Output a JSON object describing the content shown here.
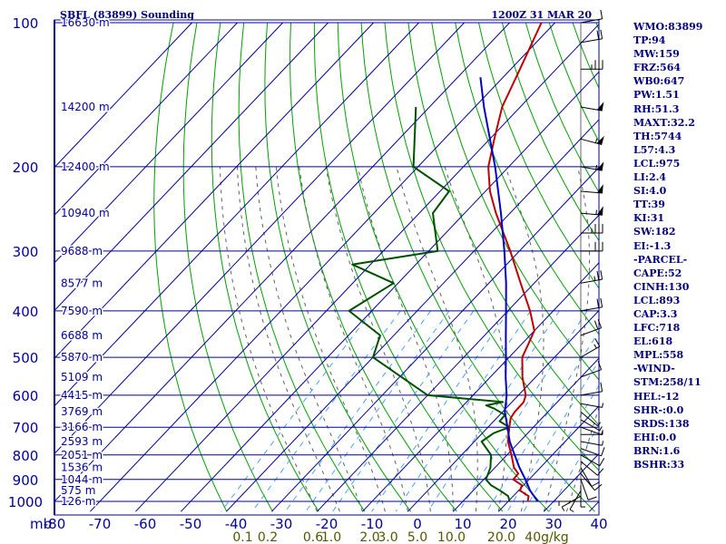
{
  "header": {
    "station": "SBFL (83899) Sounding",
    "time": "1200Z 31 MAR 20"
  },
  "colors": {
    "frame": "#00009c",
    "isobar": "#00009c",
    "isotherm": "#00009c",
    "dry_adiabat": "#00a000",
    "moist_adiabat": "#606060",
    "mixing_ratio": "#4aa3ff",
    "temperature": "#c00000",
    "dewpoint": "#005000",
    "parcel": "#0000c8",
    "text": "#00007f",
    "mixing_label": "#555500"
  },
  "sidebar": {
    "items": [
      "WMO:83899",
      "TP:94",
      "MW:159",
      "FRZ:564",
      "WB0:647",
      "PW:1.51",
      "RH:51.3",
      "MAXT:32.2",
      "TH:5744",
      "L57:4.3",
      "LCL:975",
      "LI:2.4",
      "SI:4.0",
      "TT:39",
      "KI:31",
      "SW:182",
      "EI:-1.3",
      "-PARCEL-",
      "CAPE:52",
      "CINH:130",
      "LCL:893",
      "CAP:3.3",
      "LFC:718",
      "EL:618",
      "MPL:558",
      "-WIND-",
      "STM:258/11",
      "HEL:-12",
      "SHR-:0.0",
      "SRDS:138",
      "EHI:0.0",
      "BRN:1.6",
      "BSHR:33"
    ]
  },
  "chart_data": {
    "type": "line",
    "title": "SBFL (83899) Sounding",
    "subtitle": "1200Z 31 MAR 20",
    "xlabel": "",
    "ylabel": "mb",
    "xlim": [
      -80,
      40
    ],
    "ylim": [
      1000,
      100
    ],
    "y_scale": "log",
    "grid": true,
    "x_ticks": [
      "-80",
      "-70",
      "-60",
      "-50",
      "-40",
      "-30",
      "-20",
      "-10",
      "0",
      "10",
      "20",
      "30",
      "40"
    ],
    "x_tick_values": [
      -80,
      -70,
      -60,
      -50,
      -40,
      -30,
      -20,
      -10,
      0,
      10,
      20,
      30,
      40
    ],
    "p_ticks": [
      "100",
      "200",
      "300",
      "400",
      "500",
      "600",
      "700",
      "800",
      "900",
      "1000"
    ],
    "p_tick_values": [
      100,
      200,
      300,
      400,
      500,
      600,
      700,
      800,
      900,
      1000
    ],
    "y_axis_unit": "mb",
    "heights": [
      {
        "label": "16630 m",
        "p": 100
      },
      {
        "label": "14200 m",
        "p": 150
      },
      {
        "label": "12400 m",
        "p": 200
      },
      {
        "label": "10940 m",
        "p": 250
      },
      {
        "label": "9688 m",
        "p": 300
      },
      {
        "label": "8577 m",
        "p": 350
      },
      {
        "label": "7590 m",
        "p": 400
      },
      {
        "label": "6688 m",
        "p": 450
      },
      {
        "label": "5870 m",
        "p": 500
      },
      {
        "label": "5109 m",
        "p": 550
      },
      {
        "label": "4415 m",
        "p": 600
      },
      {
        "label": "3769 m",
        "p": 650
      },
      {
        "label": "3166 m",
        "p": 700
      },
      {
        "label": "2593 m",
        "p": 750
      },
      {
        "label": "2051 m",
        "p": 800
      },
      {
        "label": "1536 m",
        "p": 850
      },
      {
        "label": "1044 m",
        "p": 900
      },
      {
        "label": "575 m",
        "p": 950
      },
      {
        "label": "126 m",
        "p": 1000
      }
    ],
    "mixing_ratio_ticks": [
      {
        "label": "0.1",
        "t": -38.5
      },
      {
        "label": "0.2",
        "t": -33.0
      },
      {
        "label": "0.6",
        "t": -23.0
      },
      {
        "label": "1.0",
        "t": -19.0
      },
      {
        "label": "2.0",
        "t": -10.5
      },
      {
        "label": "3.0",
        "t": -6.5
      },
      {
        "label": "5.0",
        "t": 0.0
      },
      {
        "label": "10.0",
        "t": 7.5
      },
      {
        "label": "20.0",
        "t": 18.5
      },
      {
        "label": "40g/kg",
        "t": 28.5
      }
    ],
    "series": [
      {
        "points": [
          {
            "p": 1000,
            "t": 24.3
          },
          {
            "p": 975,
            "t": 23.4
          },
          {
            "p": 950,
            "t": 20.4
          },
          {
            "p": 925,
            "t": 19.6
          },
          {
            "p": 900,
            "t": 16.5
          },
          {
            "p": 875,
            "t": 16.4
          },
          {
            "p": 850,
            "t": 14.2
          },
          {
            "p": 800,
            "t": 11.0
          },
          {
            "p": 750,
            "t": 7.4
          },
          {
            "p": 700,
            "t": 4.7
          },
          {
            "p": 670,
            "t": 3.1
          },
          {
            "p": 650,
            "t": 2.7
          },
          {
            "p": 620,
            "t": 2.6
          },
          {
            "p": 600,
            "t": 1.6
          },
          {
            "p": 550,
            "t": -2.9
          },
          {
            "p": 500,
            "t": -7.1
          },
          {
            "p": 470,
            "t": -8.5
          },
          {
            "p": 440,
            "t": -10.0
          },
          {
            "p": 400,
            "t": -15.1
          },
          {
            "p": 350,
            "t": -23.0
          },
          {
            "p": 300,
            "t": -32.0
          },
          {
            "p": 250,
            "t": -43.1
          },
          {
            "p": 225,
            "t": -49.0
          },
          {
            "p": 200,
            "t": -54.5
          },
          {
            "p": 175,
            "t": -59.0
          },
          {
            "p": 150,
            "t": -64.0
          },
          {
            "p": 125,
            "t": -68.0
          },
          {
            "p": 100,
            "t": -73.0
          }
        ]
      },
      {
        "points": [
          {
            "p": 1000,
            "t": 20.3
          },
          {
            "p": 975,
            "t": 18.9
          },
          {
            "p": 950,
            "t": 16.0
          },
          {
            "p": 925,
            "t": 12.8
          },
          {
            "p": 900,
            "t": 10.5
          },
          {
            "p": 850,
            "t": 9.0
          },
          {
            "p": 800,
            "t": 6.5
          },
          {
            "p": 750,
            "t": 1.6
          },
          {
            "p": 720,
            "t": 2.5
          },
          {
            "p": 700,
            "t": 4.7
          },
          {
            "p": 680,
            "t": 1.3
          },
          {
            "p": 660,
            "t": 1.2
          },
          {
            "p": 640,
            "t": -2.5
          },
          {
            "p": 630,
            "t": -5.0
          },
          {
            "p": 620,
            "t": -2.0
          },
          {
            "p": 600,
            "t": -20.0
          },
          {
            "p": 500,
            "t": -40.0
          },
          {
            "p": 450,
            "t": -43.0
          },
          {
            "p": 400,
            "t": -55.0
          },
          {
            "p": 350,
            "t": -51.0
          },
          {
            "p": 320,
            "t": -64.0
          },
          {
            "p": 300,
            "t": -48.0
          },
          {
            "p": 250,
            "t": -57.0
          },
          {
            "p": 225,
            "t": -58.0
          },
          {
            "p": 200,
            "t": -71.0
          },
          {
            "p": 150,
            "t": -83.0
          }
        ]
      },
      {
        "points": [
          {
            "p": 1000,
            "t": 26.5
          },
          {
            "p": 950,
            "t": 22.6
          },
          {
            "p": 900,
            "t": 19.2
          },
          {
            "p": 850,
            "t": 15.4
          },
          {
            "p": 800,
            "t": 11.7
          },
          {
            "p": 750,
            "t": 7.8
          },
          {
            "p": 700,
            "t": 4.3
          },
          {
            "p": 650,
            "t": 0.5
          },
          {
            "p": 600,
            "t": -2.6
          },
          {
            "p": 550,
            "t": -6.6
          },
          {
            "p": 500,
            "t": -10.7
          },
          {
            "p": 450,
            "t": -15.3
          },
          {
            "p": 400,
            "t": -20.4
          },
          {
            "p": 350,
            "t": -26.2
          },
          {
            "p": 300,
            "t": -33.3
          },
          {
            "p": 250,
            "t": -42.0
          },
          {
            "p": 200,
            "t": -53.0
          },
          {
            "p": 150,
            "t": -68.0
          },
          {
            "p": 130,
            "t": -75.0
          }
        ]
      }
    ],
    "wind_profile": [
      {
        "p": 1000,
        "dir": 90,
        "spd": 5
      },
      {
        "p": 975,
        "dir": 120,
        "spd": 5
      },
      {
        "p": 950,
        "dir": 150,
        "spd": 5
      },
      {
        "p": 925,
        "dir": 180,
        "spd": 5
      },
      {
        "p": 900,
        "dir": 200,
        "spd": 10
      },
      {
        "p": 875,
        "dir": 220,
        "spd": 10
      },
      {
        "p": 850,
        "dir": 210,
        "spd": 10
      },
      {
        "p": 825,
        "dir": 230,
        "spd": 10
      },
      {
        "p": 800,
        "dir": 240,
        "spd": 10
      },
      {
        "p": 775,
        "dir": 250,
        "spd": 10
      },
      {
        "p": 750,
        "dir": 260,
        "spd": 5
      },
      {
        "p": 725,
        "dir": 270,
        "spd": 5
      },
      {
        "p": 700,
        "dir": 250,
        "spd": 5
      },
      {
        "p": 675,
        "dir": 240,
        "spd": 5
      },
      {
        "p": 650,
        "dir": 230,
        "spd": 5
      },
      {
        "p": 625,
        "dir": 260,
        "spd": 5
      },
      {
        "p": 600,
        "dir": 280,
        "spd": 10
      },
      {
        "p": 550,
        "dir": 290,
        "spd": 10
      },
      {
        "p": 500,
        "dir": 300,
        "spd": 15
      },
      {
        "p": 450,
        "dir": 290,
        "spd": 20
      },
      {
        "p": 400,
        "dir": 280,
        "spd": 20
      },
      {
        "p": 350,
        "dir": 280,
        "spd": 25
      },
      {
        "p": 300,
        "dir": 270,
        "spd": 30
      },
      {
        "p": 275,
        "dir": 270,
        "spd": 35
      },
      {
        "p": 250,
        "dir": 265,
        "spd": 55
      },
      {
        "p": 225,
        "dir": 265,
        "spd": 50
      },
      {
        "p": 200,
        "dir": 260,
        "spd": 55
      },
      {
        "p": 175,
        "dir": 255,
        "spd": 55
      },
      {
        "p": 150,
        "dir": 260,
        "spd": 50
      },
      {
        "p": 125,
        "dir": 270,
        "spd": 35
      },
      {
        "p": 110,
        "dir": 280,
        "spd": 20
      },
      {
        "p": 100,
        "dir": 280,
        "spd": 10
      }
    ]
  }
}
